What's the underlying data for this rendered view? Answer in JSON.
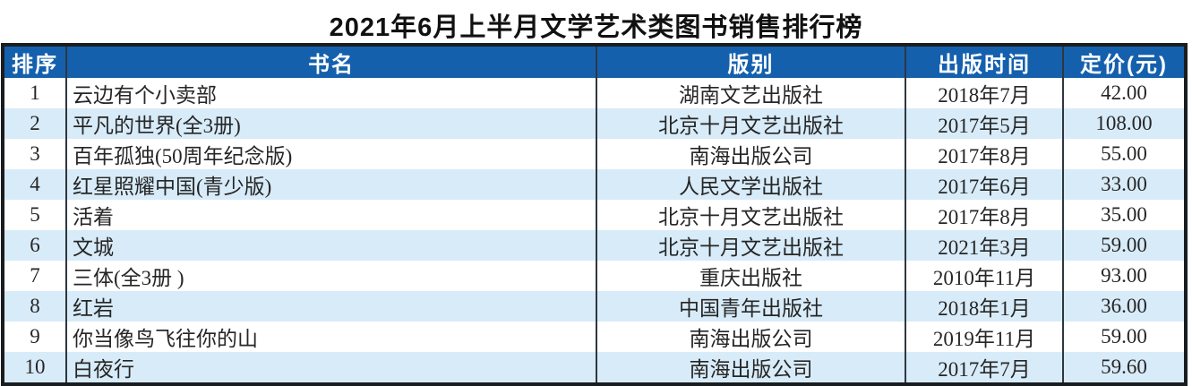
{
  "title": "2021年6月上半月文学艺术类图书销售排行榜",
  "columns": {
    "rank": "排序",
    "book": "书名",
    "publisher": "版别",
    "pub_date": "出版时间",
    "price": "定价(元)"
  },
  "rows": [
    {
      "rank": "1",
      "book": "云边有个小卖部",
      "publisher": "湖南文艺出版社",
      "pub_date": "2018年7月",
      "price": "42.00"
    },
    {
      "rank": "2",
      "book": "平凡的世界(全3册)",
      "publisher": "北京十月文艺出版社",
      "pub_date": "2017年5月",
      "price": "108.00"
    },
    {
      "rank": "3",
      "book": "百年孤独(50周年纪念版)",
      "publisher": "南海出版公司",
      "pub_date": "2017年8月",
      "price": "55.00"
    },
    {
      "rank": "4",
      "book": "红星照耀中国(青少版)",
      "publisher": "人民文学出版社",
      "pub_date": "2017年6月",
      "price": "33.00"
    },
    {
      "rank": "5",
      "book": "活着",
      "publisher": "北京十月文艺出版社",
      "pub_date": "2017年8月",
      "price": "35.00"
    },
    {
      "rank": "6",
      "book": "文城",
      "publisher": "北京十月文艺出版社",
      "pub_date": "2021年3月",
      "price": "59.00"
    },
    {
      "rank": "7",
      "book": "三体(全3册 )",
      "publisher": "重庆出版社",
      "pub_date": "2010年11月",
      "price": "93.00"
    },
    {
      "rank": "8",
      "book": "红岩",
      "publisher": "中国青年出版社",
      "pub_date": "2018年1月",
      "price": "36.00"
    },
    {
      "rank": "9",
      "book": "你当像鸟飞往你的山",
      "publisher": "南海出版公司",
      "pub_date": "2019年11月",
      "price": "59.00"
    },
    {
      "rank": "10",
      "book": "白夜行",
      "publisher": "南海出版公司",
      "pub_date": "2017年7月",
      "price": "59.60"
    }
  ],
  "colors": {
    "header_bg": "#1560ad",
    "header_text": "#ffffff",
    "stripe": "#d8ebf8",
    "border": "#1a1d20"
  },
  "chart_data": {
    "type": "table",
    "title": "2021年6月上半月文学艺术类图书销售排行榜",
    "columns": [
      "排序",
      "书名",
      "版别",
      "出版时间",
      "定价(元)"
    ],
    "rows": [
      [
        "1",
        "云边有个小卖部",
        "湖南文艺出版社",
        "2018年7月",
        42.0
      ],
      [
        "2",
        "平凡的世界(全3册)",
        "北京十月文艺出版社",
        "2017年5月",
        108.0
      ],
      [
        "3",
        "百年孤独(50周年纪念版)",
        "南海出版公司",
        "2017年8月",
        55.0
      ],
      [
        "4",
        "红星照耀中国(青少版)",
        "人民文学出版社",
        "2017年6月",
        33.0
      ],
      [
        "5",
        "活着",
        "北京十月文艺出版社",
        "2017年8月",
        35.0
      ],
      [
        "6",
        "文城",
        "北京十月文艺出版社",
        "2021年3月",
        59.0
      ],
      [
        "7",
        "三体(全3册 )",
        "重庆出版社",
        "2010年11月",
        93.0
      ],
      [
        "8",
        "红岩",
        "中国青年出版社",
        "2018年1月",
        36.0
      ],
      [
        "9",
        "你当像鸟飞往你的山",
        "南海出版公司",
        "2019年11月",
        59.0
      ],
      [
        "10",
        "白夜行",
        "南海出版公司",
        "2017年7月",
        59.6
      ]
    ],
    "layout": {
      "striped_rows": "even rows light blue",
      "header": "blue background, white bold text",
      "grid": "vertical dividers only, thick black outer border"
    }
  }
}
